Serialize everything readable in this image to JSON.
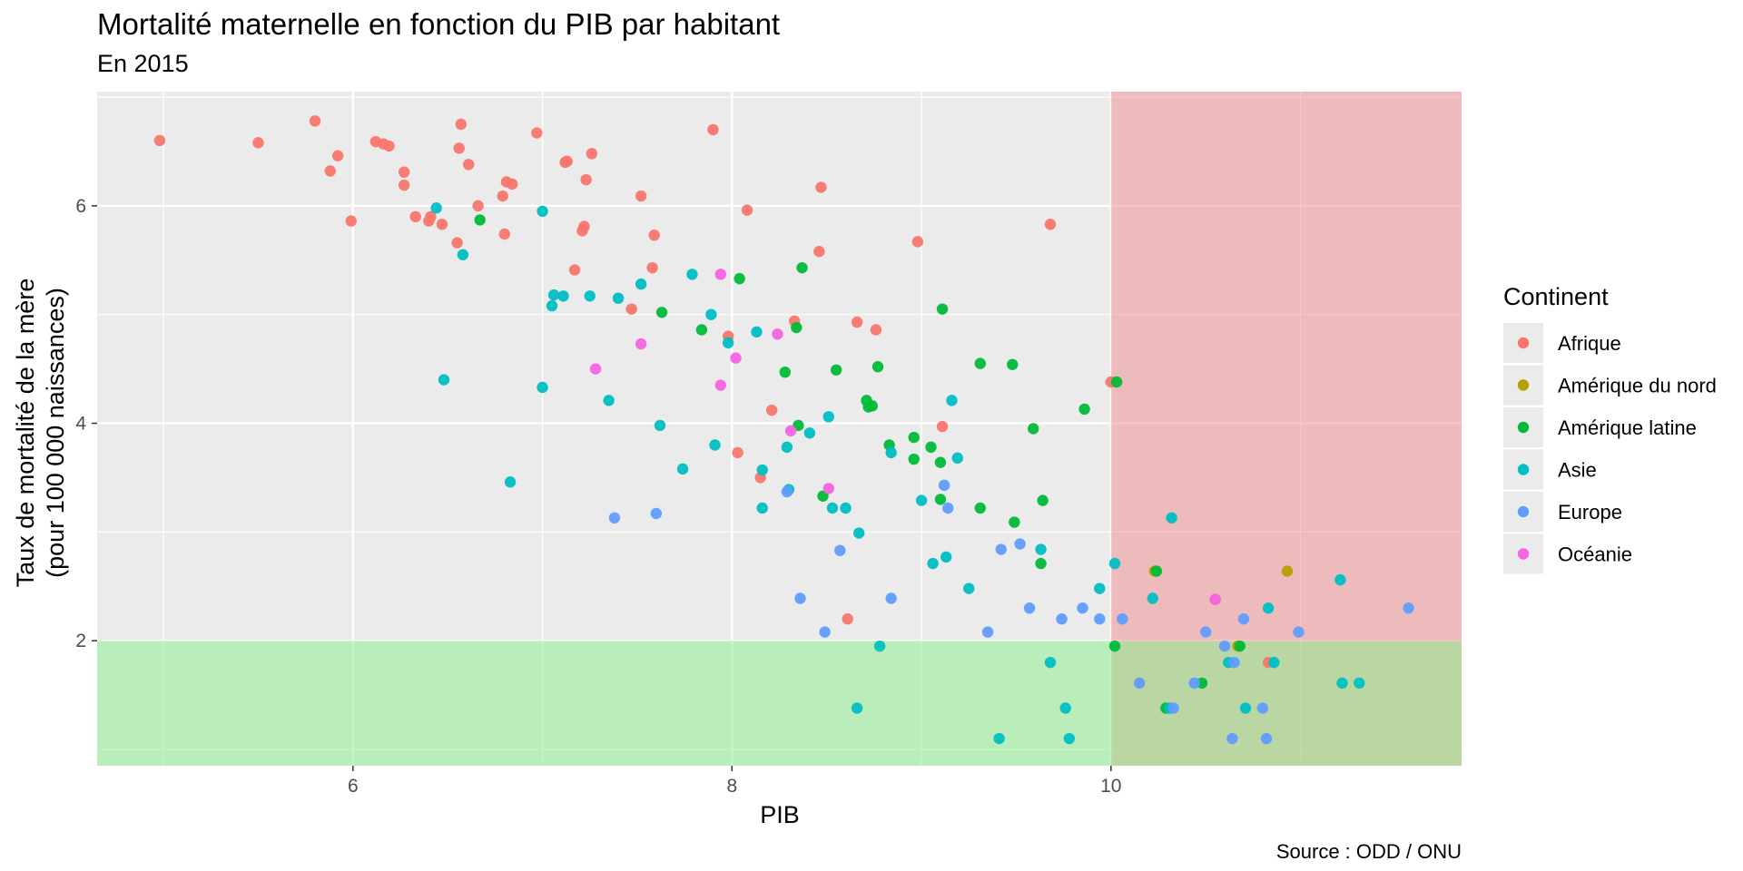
{
  "chart_data": {
    "type": "scatter",
    "title": "Mortalité maternelle en fonction du PIB par habitant",
    "subtitle": "En 2015",
    "xlabel": "PIB",
    "ylabel_line1": "Taux de mortalité de la mère",
    "ylabel_line2": "(pour 100 000 naissances)",
    "caption": "Source : ODD / ONU",
    "xlim": [
      4.65,
      11.85
    ],
    "ylim": [
      0.85,
      7.05
    ],
    "x_ticks": [
      6,
      8,
      10
    ],
    "y_ticks": [
      2,
      4,
      6
    ],
    "x_tick_labels": [
      "6",
      "8",
      "10"
    ],
    "y_tick_labels": [
      "2",
      "4",
      "6"
    ],
    "grid": true,
    "legend_position": "right",
    "legend": {
      "title": "Continent",
      "entries": [
        "Afrique",
        "Amérique du nord",
        "Amérique latine",
        "Asie",
        "Europe",
        "Océanie"
      ]
    },
    "colors": {
      "Afrique": "#F8766D",
      "Amérique du nord": "#B79F00",
      "Amérique latine": "#00BA38",
      "Asie": "#00BFC4",
      "Europe": "#619CFF",
      "Océanie": "#F564E3",
      "panel": "#EBEBEB",
      "grid": "#FFFFFF",
      "region_red": "#F8766D",
      "region_green": "#7CF87C"
    },
    "shaded_regions": [
      {
        "name": "high-gdp-region",
        "x": [
          10,
          11.85
        ],
        "y": [
          0.85,
          7.05
        ],
        "color": "#F08080",
        "opacity": 0.45
      },
      {
        "name": "low-mortality-region",
        "x": [
          4.65,
          11.85
        ],
        "y": [
          0.85,
          2
        ],
        "color": "#90EE90",
        "opacity": 0.55
      }
    ],
    "series": [
      {
        "name": "Afrique",
        "points": [
          [
            4.98,
            6.6
          ],
          [
            5.5,
            6.58
          ],
          [
            5.8,
            6.78
          ],
          [
            5.88,
            6.32
          ],
          [
            5.92,
            6.46
          ],
          [
            5.99,
            5.86
          ],
          [
            6.12,
            6.59
          ],
          [
            6.16,
            6.57
          ],
          [
            6.19,
            6.55
          ],
          [
            6.27,
            6.31
          ],
          [
            6.27,
            6.19
          ],
          [
            6.33,
            5.9
          ],
          [
            6.4,
            5.86
          ],
          [
            6.41,
            5.9
          ],
          [
            6.47,
            5.83
          ],
          [
            6.55,
            5.66
          ],
          [
            6.56,
            6.53
          ],
          [
            6.57,
            6.75
          ],
          [
            6.61,
            6.38
          ],
          [
            6.66,
            6.0
          ],
          [
            6.79,
            6.09
          ],
          [
            6.8,
            5.74
          ],
          [
            6.81,
            6.22
          ],
          [
            6.84,
            6.2
          ],
          [
            6.97,
            6.67
          ],
          [
            7.12,
            6.4
          ],
          [
            7.13,
            6.41
          ],
          [
            7.17,
            5.41
          ],
          [
            7.21,
            5.77
          ],
          [
            7.22,
            5.81
          ],
          [
            7.23,
            6.24
          ],
          [
            7.26,
            6.48
          ],
          [
            7.47,
            5.05
          ],
          [
            7.52,
            6.09
          ],
          [
            7.58,
            5.43
          ],
          [
            7.59,
            5.73
          ],
          [
            7.9,
            6.7
          ],
          [
            7.98,
            4.8
          ],
          [
            8.03,
            3.73
          ],
          [
            8.08,
            5.96
          ],
          [
            8.15,
            3.5
          ],
          [
            8.21,
            4.12
          ],
          [
            8.33,
            4.94
          ],
          [
            8.46,
            5.58
          ],
          [
            8.47,
            6.17
          ],
          [
            8.61,
            2.2
          ],
          [
            8.66,
            4.93
          ],
          [
            8.76,
            4.86
          ],
          [
            8.98,
            5.67
          ],
          [
            9.11,
            3.97
          ],
          [
            9.68,
            5.83
          ],
          [
            10.0,
            4.38
          ],
          [
            10.55,
            2.38
          ],
          [
            10.83,
            1.8
          ]
        ]
      },
      {
        "name": "Amérique du nord",
        "points": [
          [
            10.23,
            2.64
          ],
          [
            10.67,
            1.95
          ],
          [
            10.93,
            2.64
          ]
        ]
      },
      {
        "name": "Amérique latine",
        "points": [
          [
            6.67,
            5.87
          ],
          [
            7.63,
            5.02
          ],
          [
            7.84,
            4.86
          ],
          [
            8.04,
            5.33
          ],
          [
            8.28,
            4.47
          ],
          [
            8.34,
            4.88
          ],
          [
            8.35,
            3.98
          ],
          [
            8.37,
            5.43
          ],
          [
            8.48,
            3.33
          ],
          [
            8.55,
            4.49
          ],
          [
            8.71,
            4.21
          ],
          [
            8.72,
            4.15
          ],
          [
            8.74,
            4.16
          ],
          [
            8.77,
            4.52
          ],
          [
            8.83,
            3.8
          ],
          [
            8.96,
            3.67
          ],
          [
            8.96,
            3.87
          ],
          [
            9.05,
            3.78
          ],
          [
            9.1,
            3.64
          ],
          [
            9.1,
            3.3
          ],
          [
            9.11,
            5.05
          ],
          [
            9.31,
            3.22
          ],
          [
            9.31,
            4.55
          ],
          [
            9.48,
            4.54
          ],
          [
            9.49,
            3.09
          ],
          [
            9.59,
            3.95
          ],
          [
            9.63,
            2.71
          ],
          [
            9.64,
            3.29
          ],
          [
            9.86,
            4.13
          ],
          [
            10.02,
            1.95
          ],
          [
            10.03,
            4.38
          ],
          [
            10.24,
            2.64
          ],
          [
            10.29,
            1.38
          ],
          [
            10.48,
            1.61
          ],
          [
            10.68,
            1.95
          ]
        ]
      },
      {
        "name": "Asie",
        "points": [
          [
            6.44,
            5.98
          ],
          [
            6.48,
            4.4
          ],
          [
            6.58,
            5.55
          ],
          [
            6.83,
            3.46
          ],
          [
            7.0,
            5.95
          ],
          [
            7.0,
            4.33
          ],
          [
            7.05,
            5.08
          ],
          [
            7.06,
            5.18
          ],
          [
            7.11,
            5.17
          ],
          [
            7.25,
            5.17
          ],
          [
            7.35,
            4.21
          ],
          [
            7.4,
            5.15
          ],
          [
            7.52,
            5.28
          ],
          [
            7.62,
            3.98
          ],
          [
            7.74,
            3.58
          ],
          [
            7.79,
            5.37
          ],
          [
            7.89,
            5.0
          ],
          [
            7.91,
            3.8
          ],
          [
            7.98,
            4.74
          ],
          [
            8.13,
            4.84
          ],
          [
            8.16,
            3.57
          ],
          [
            8.16,
            3.22
          ],
          [
            8.29,
            3.78
          ],
          [
            8.3,
            3.39
          ],
          [
            8.41,
            3.91
          ],
          [
            8.51,
            4.06
          ],
          [
            8.53,
            3.22
          ],
          [
            8.6,
            3.22
          ],
          [
            8.66,
            1.38
          ],
          [
            8.67,
            2.99
          ],
          [
            8.78,
            1.95
          ],
          [
            8.84,
            3.73
          ],
          [
            9.0,
            3.29
          ],
          [
            9.06,
            2.71
          ],
          [
            9.13,
            2.77
          ],
          [
            9.16,
            4.21
          ],
          [
            9.19,
            3.68
          ],
          [
            9.25,
            2.48
          ],
          [
            9.41,
            1.1
          ],
          [
            9.63,
            2.84
          ],
          [
            9.68,
            1.8
          ],
          [
            9.76,
            1.38
          ],
          [
            9.78,
            1.1
          ],
          [
            9.94,
            2.48
          ],
          [
            10.02,
            2.71
          ],
          [
            10.22,
            2.39
          ],
          [
            10.31,
            1.38
          ],
          [
            10.32,
            3.13
          ],
          [
            10.62,
            1.8
          ],
          [
            10.71,
            1.38
          ],
          [
            10.83,
            2.3
          ],
          [
            10.86,
            1.8
          ],
          [
            11.21,
            2.56
          ],
          [
            11.22,
            1.61
          ],
          [
            11.31,
            1.61
          ]
        ]
      },
      {
        "name": "Europe",
        "points": [
          [
            7.38,
            3.13
          ],
          [
            7.6,
            3.17
          ],
          [
            8.29,
            3.37
          ],
          [
            8.36,
            2.39
          ],
          [
            8.49,
            2.08
          ],
          [
            8.57,
            2.83
          ],
          [
            8.84,
            2.39
          ],
          [
            9.12,
            3.43
          ],
          [
            9.14,
            3.22
          ],
          [
            9.35,
            2.08
          ],
          [
            9.42,
            2.84
          ],
          [
            9.52,
            2.89
          ],
          [
            9.57,
            2.3
          ],
          [
            9.74,
            2.2
          ],
          [
            9.85,
            2.3
          ],
          [
            9.94,
            2.2
          ],
          [
            10.06,
            2.2
          ],
          [
            10.15,
            1.61
          ],
          [
            10.33,
            1.38
          ],
          [
            10.44,
            1.61
          ],
          [
            10.5,
            2.08
          ],
          [
            10.6,
            1.95
          ],
          [
            10.64,
            1.1
          ],
          [
            10.65,
            1.8
          ],
          [
            10.7,
            2.2
          ],
          [
            10.8,
            1.38
          ],
          [
            10.82,
            1.1
          ],
          [
            10.99,
            2.08
          ],
          [
            11.57,
            2.3
          ]
        ]
      },
      {
        "name": "Océanie",
        "points": [
          [
            7.28,
            4.5
          ],
          [
            7.52,
            4.73
          ],
          [
            7.94,
            4.35
          ],
          [
            7.94,
            5.37
          ],
          [
            8.02,
            4.6
          ],
          [
            8.24,
            4.82
          ],
          [
            8.31,
            3.93
          ],
          [
            8.51,
            3.4
          ],
          [
            10.55,
            2.38
          ]
        ]
      }
    ]
  }
}
